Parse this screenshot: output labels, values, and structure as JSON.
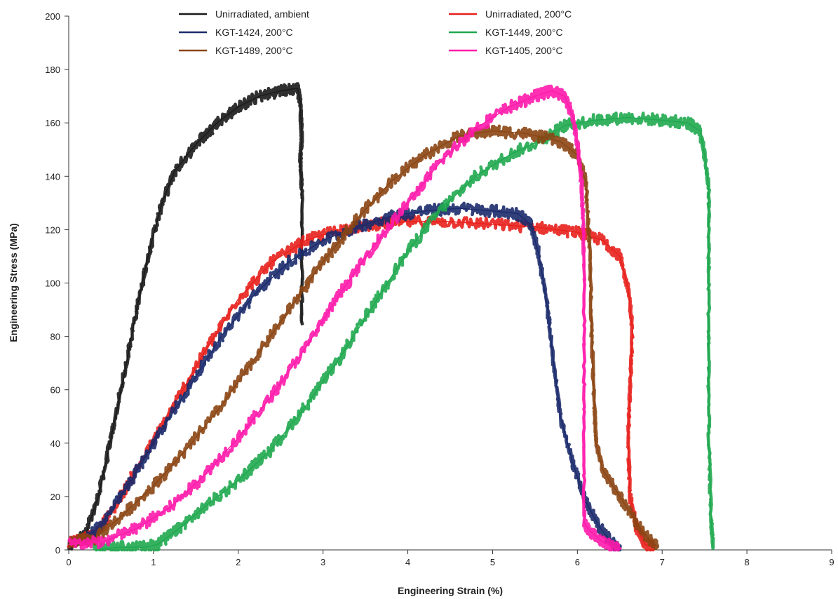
{
  "chart_data": {
    "type": "line",
    "title": "",
    "xlabel": "Engineering Strain (%)",
    "ylabel": "Engineering  Stress (MPa)",
    "xlim": [
      0,
      9
    ],
    "ylim": [
      0,
      200
    ],
    "x_ticks": [
      "0",
      "1",
      "2",
      "3",
      "4",
      "5",
      "6",
      "7",
      "8",
      "9"
    ],
    "y_ticks": [
      "0",
      "20",
      "40",
      "60",
      "80",
      "100",
      "120",
      "140",
      "160",
      "180",
      "200"
    ],
    "grid": false,
    "legend_position": "top",
    "series": [
      {
        "name": "Unirradiated, ambient",
        "color": "#1a1a1a",
        "points": [
          [
            0.0,
            1
          ],
          [
            0.2,
            6
          ],
          [
            0.35,
            20
          ],
          [
            0.5,
            42
          ],
          [
            0.65,
            65
          ],
          [
            0.8,
            90
          ],
          [
            0.95,
            112
          ],
          [
            1.1,
            130
          ],
          [
            1.25,
            142
          ],
          [
            1.5,
            152
          ],
          [
            1.75,
            160
          ],
          [
            2.0,
            166
          ],
          [
            2.25,
            170
          ],
          [
            2.5,
            172
          ],
          [
            2.7,
            173
          ],
          [
            2.73,
            168
          ],
          [
            2.75,
            155
          ],
          [
            2.73,
            145
          ],
          [
            2.75,
            135
          ],
          [
            2.75,
            85
          ]
        ]
      },
      {
        "name": "Unirradiated, 200°C",
        "color": "#e8201c",
        "points": [
          [
            0.0,
            3
          ],
          [
            0.3,
            5
          ],
          [
            0.5,
            14
          ],
          [
            0.8,
            30
          ],
          [
            1.2,
            52
          ],
          [
            1.6,
            74
          ],
          [
            2.0,
            94
          ],
          [
            2.4,
            108
          ],
          [
            2.8,
            116
          ],
          [
            3.2,
            120
          ],
          [
            3.6,
            122
          ],
          [
            4.0,
            123
          ],
          [
            4.5,
            123
          ],
          [
            5.0,
            122
          ],
          [
            5.5,
            121
          ],
          [
            6.0,
            119
          ],
          [
            6.3,
            116
          ],
          [
            6.5,
            110
          ],
          [
            6.6,
            98
          ],
          [
            6.65,
            82
          ],
          [
            6.62,
            60
          ],
          [
            6.6,
            40
          ],
          [
            6.62,
            20
          ],
          [
            6.7,
            8
          ],
          [
            6.8,
            2
          ],
          [
            6.9,
            1
          ]
        ]
      },
      {
        "name": "KGT-1424, 200°C",
        "color": "#1b2a6b",
        "points": [
          [
            0.2,
            4
          ],
          [
            0.4,
            10
          ],
          [
            0.7,
            24
          ],
          [
            1.0,
            40
          ],
          [
            1.4,
            60
          ],
          [
            1.8,
            80
          ],
          [
            2.2,
            96
          ],
          [
            2.6,
            108
          ],
          [
            3.0,
            116
          ],
          [
            3.4,
            121
          ],
          [
            3.8,
            125
          ],
          [
            4.2,
            127
          ],
          [
            4.6,
            128
          ],
          [
            5.0,
            127
          ],
          [
            5.3,
            126
          ],
          [
            5.45,
            122
          ],
          [
            5.55,
            110
          ],
          [
            5.65,
            90
          ],
          [
            5.72,
            70
          ],
          [
            5.8,
            50
          ],
          [
            5.95,
            32
          ],
          [
            6.1,
            18
          ],
          [
            6.25,
            9
          ],
          [
            6.4,
            3
          ],
          [
            6.5,
            0
          ]
        ]
      },
      {
        "name": "KGT-1449, 200°C",
        "color": "#1fa84f",
        "points": [
          [
            0.3,
            0
          ],
          [
            0.6,
            1
          ],
          [
            0.9,
            1
          ],
          [
            1.05,
            2
          ],
          [
            1.3,
            8
          ],
          [
            1.6,
            16
          ],
          [
            2.0,
            26
          ],
          [
            2.4,
            38
          ],
          [
            2.8,
            54
          ],
          [
            3.2,
            72
          ],
          [
            3.6,
            92
          ],
          [
            4.0,
            112
          ],
          [
            4.4,
            128
          ],
          [
            4.8,
            140
          ],
          [
            5.2,
            148
          ],
          [
            5.6,
            154
          ],
          [
            5.85,
            159
          ],
          [
            6.2,
            161
          ],
          [
            6.6,
            162
          ],
          [
            7.0,
            161
          ],
          [
            7.3,
            160
          ],
          [
            7.45,
            157
          ],
          [
            7.5,
            148
          ],
          [
            7.55,
            135
          ],
          [
            7.55,
            100
          ],
          [
            7.55,
            40
          ],
          [
            7.58,
            10
          ],
          [
            7.6,
            1
          ]
        ]
      },
      {
        "name": "KGT-1489, 200°C",
        "color": "#8b4513",
        "points": [
          [
            0.0,
            3
          ],
          [
            0.3,
            4
          ],
          [
            0.6,
            12
          ],
          [
            1.0,
            24
          ],
          [
            1.4,
            38
          ],
          [
            1.8,
            54
          ],
          [
            2.2,
            72
          ],
          [
            2.6,
            90
          ],
          [
            3.0,
            108
          ],
          [
            3.4,
            124
          ],
          [
            3.8,
            138
          ],
          [
            4.2,
            148
          ],
          [
            4.6,
            155
          ],
          [
            5.0,
            157
          ],
          [
            5.4,
            156
          ],
          [
            5.8,
            153
          ],
          [
            6.0,
            148
          ],
          [
            6.1,
            138
          ],
          [
            6.15,
            110
          ],
          [
            6.17,
            80
          ],
          [
            6.2,
            55
          ],
          [
            6.22,
            40
          ],
          [
            6.3,
            30
          ],
          [
            6.5,
            20
          ],
          [
            6.7,
            10
          ],
          [
            6.85,
            4
          ],
          [
            6.95,
            1
          ]
        ]
      },
      {
        "name": "KGT-1405, 200°C",
        "color": "#ff1aab",
        "points": [
          [
            0.0,
            2
          ],
          [
            0.4,
            3
          ],
          [
            0.8,
            8
          ],
          [
            1.2,
            16
          ],
          [
            1.6,
            28
          ],
          [
            2.0,
            42
          ],
          [
            2.4,
            58
          ],
          [
            2.8,
            76
          ],
          [
            3.2,
            96
          ],
          [
            3.6,
            114
          ],
          [
            4.0,
            130
          ],
          [
            4.4,
            146
          ],
          [
            4.8,
            158
          ],
          [
            5.2,
            166
          ],
          [
            5.5,
            170
          ],
          [
            5.7,
            172
          ],
          [
            5.85,
            170
          ],
          [
            5.95,
            162
          ],
          [
            6.0,
            152
          ],
          [
            6.05,
            138
          ],
          [
            6.08,
            110
          ],
          [
            6.08,
            10
          ],
          [
            6.15,
            7
          ],
          [
            6.3,
            3
          ],
          [
            6.5,
            0
          ]
        ]
      }
    ],
    "legend_order": [
      0,
      1,
      2,
      3,
      4,
      5
    ]
  }
}
